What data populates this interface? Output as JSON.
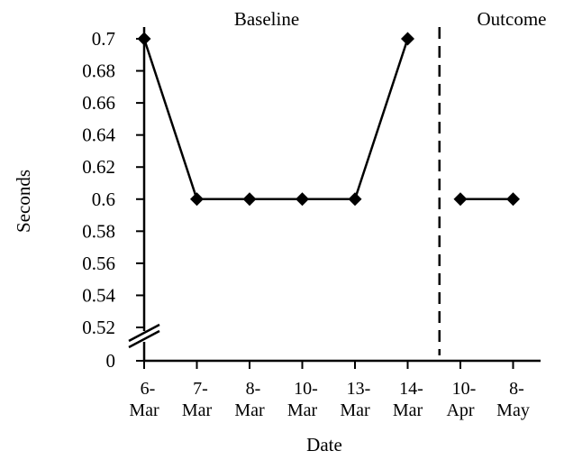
{
  "chart_data": {
    "type": "line",
    "xlabel": "Date",
    "ylabel": "Seconds",
    "categories": [
      [
        "6-",
        "Mar"
      ],
      [
        "7-",
        "Mar"
      ],
      [
        "8-",
        "Mar"
      ],
      [
        "10-",
        "Mar"
      ],
      [
        "13-",
        "Mar"
      ],
      [
        "14-",
        "Mar"
      ],
      [
        "10-",
        "Apr"
      ],
      [
        "8-",
        "May"
      ]
    ],
    "phases": [
      {
        "label": "Baseline",
        "categories": [
          0,
          1,
          2,
          3,
          4,
          5
        ]
      },
      {
        "label": "Outcome",
        "categories": [
          6,
          7
        ]
      }
    ],
    "series": [
      {
        "segment": "Baseline",
        "x": [
          0,
          1,
          2,
          3,
          4,
          5
        ],
        "values": [
          0.7,
          0.6,
          0.6,
          0.6,
          0.6,
          0.7
        ]
      },
      {
        "segment": "Outcome",
        "x": [
          6,
          7
        ],
        "values": [
          0.6,
          0.6
        ]
      }
    ],
    "y_ticks": [
      "0.7",
      "0.68",
      "0.66",
      "0.64",
      "0.62",
      "0.6",
      "0.58",
      "0.56",
      "0.54",
      "0.52",
      "0"
    ],
    "y_tick_values": [
      0.7,
      0.68,
      0.66,
      0.64,
      0.62,
      0.6,
      0.58,
      0.56,
      0.54,
      0.52,
      0
    ],
    "ylim": [
      0.52,
      0.7
    ],
    "axis_break": "between 0 and 0.52",
    "phase_change_line": "dashed, between 14-Mar and 10-Apr",
    "marker": "diamond",
    "colors": {
      "line": "#000000",
      "marker": "#000000",
      "background": "#ffffff"
    }
  }
}
